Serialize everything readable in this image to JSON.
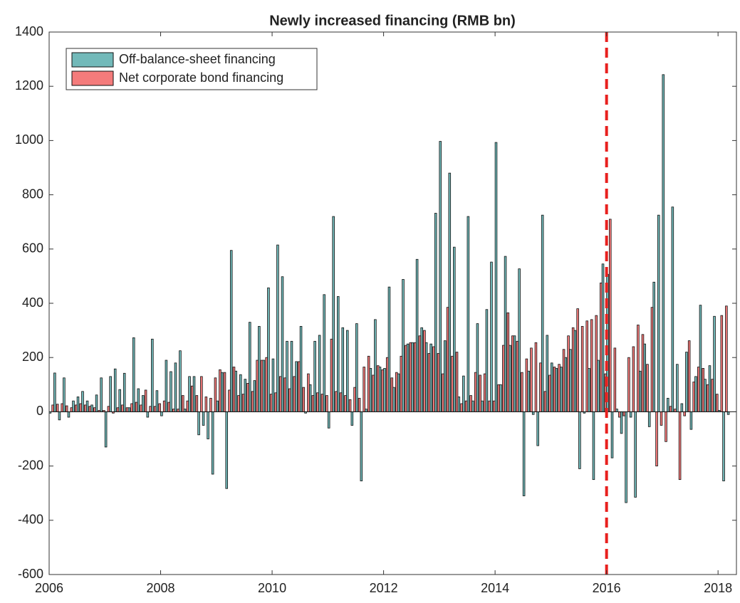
{
  "chart_data": {
    "type": "bar",
    "title": "Newly increased financing (RMB bn)",
    "x": [
      2006,
      2006.083,
      2006.167,
      2006.25,
      2006.333,
      2006.417,
      2006.5,
      2006.583,
      2006.667,
      2006.75,
      2006.833,
      2006.917,
      2007,
      2007.083,
      2007.167,
      2007.25,
      2007.333,
      2007.417,
      2007.5,
      2007.583,
      2007.667,
      2007.75,
      2007.833,
      2007.917,
      2008,
      2008.083,
      2008.167,
      2008.25,
      2008.333,
      2008.417,
      2008.5,
      2008.583,
      2008.667,
      2008.75,
      2008.833,
      2008.917,
      2009,
      2009.083,
      2009.167,
      2009.25,
      2009.333,
      2009.417,
      2009.5,
      2009.583,
      2009.667,
      2009.75,
      2009.833,
      2009.917,
      2010,
      2010.083,
      2010.167,
      2010.25,
      2010.333,
      2010.417,
      2010.5,
      2010.583,
      2010.667,
      2010.75,
      2010.833,
      2010.917,
      2011,
      2011.083,
      2011.167,
      2011.25,
      2011.333,
      2011.417,
      2011.5,
      2011.583,
      2011.667,
      2011.75,
      2011.833,
      2011.917,
      2012,
      2012.083,
      2012.167,
      2012.25,
      2012.333,
      2012.417,
      2012.5,
      2012.583,
      2012.667,
      2012.75,
      2012.833,
      2012.917,
      2013,
      2013.083,
      2013.167,
      2013.25,
      2013.333,
      2013.417,
      2013.5,
      2013.583,
      2013.667,
      2013.75,
      2013.833,
      2013.917,
      2014,
      2014.083,
      2014.167,
      2014.25,
      2014.333,
      2014.417,
      2014.5,
      2014.583,
      2014.667,
      2014.75,
      2014.833,
      2014.917,
      2015,
      2015.083,
      2015.167,
      2015.25,
      2015.333,
      2015.417,
      2015.5,
      2015.583,
      2015.667,
      2015.75,
      2015.833,
      2015.917,
      2016,
      2016.083,
      2016.167,
      2016.25,
      2016.333,
      2016.417,
      2016.5,
      2016.583,
      2016.667,
      2016.75,
      2016.833,
      2016.917,
      2017,
      2017.083,
      2017.167,
      2017.25,
      2017.333,
      2017.417,
      2017.5,
      2017.583,
      2017.667,
      2017.75,
      2017.833,
      2017.917,
      2018,
      2018.083,
      2018.167
    ],
    "series": [
      {
        "name": "Off-balance-sheet financing",
        "color": "#72b9b9",
        "values": [
          -5,
          143,
          -30,
          125,
          -20,
          40,
          55,
          75,
          40,
          25,
          62,
          125,
          -130,
          130,
          158,
          82,
          142,
          15,
          273,
          85,
          60,
          -20,
          268,
          78,
          -15,
          190,
          148,
          180,
          225,
          10,
          130,
          130,
          -85,
          -50,
          -100,
          -230,
          40,
          145,
          -283,
          595,
          150,
          137,
          120,
          330,
          115,
          315,
          190,
          457,
          195,
          615,
          498,
          260,
          260,
          185,
          315,
          -5,
          100,
          260,
          282,
          432,
          -60,
          720,
          425,
          310,
          300,
          -50,
          325,
          -255,
          10,
          160,
          340,
          165,
          160,
          460,
          90,
          140,
          488,
          250,
          255,
          562,
          310,
          255,
          250,
          732,
          997,
          262,
          880,
          607,
          55,
          132,
          720,
          40,
          325,
          40,
          377,
          552,
          993,
          100,
          573,
          245,
          280,
          527,
          -310,
          150,
          -10,
          -125,
          725,
          282,
          180,
          160,
          165,
          200,
          230,
          300,
          -210,
          -5,
          160,
          -250,
          190,
          545,
          507,
          -170,
          10,
          -80,
          -335,
          -20,
          -315,
          150,
          250,
          -55,
          478,
          725,
          1243,
          50,
          755,
          175,
          30,
          220,
          -65,
          130,
          393,
          120,
          170,
          352,
          5,
          -255,
          -10
        ]
      },
      {
        "name": "Net corporate bond financing",
        "color": "#f47b7b",
        "values": [
          30,
          25,
          28,
          30,
          22,
          15,
          25,
          30,
          25,
          20,
          15,
          5,
          5,
          20,
          -5,
          15,
          25,
          15,
          30,
          35,
          25,
          80,
          20,
          20,
          30,
          40,
          35,
          10,
          10,
          60,
          40,
          95,
          60,
          130,
          55,
          50,
          125,
          155,
          145,
          80,
          165,
          60,
          65,
          105,
          75,
          190,
          190,
          200,
          65,
          70,
          130,
          125,
          85,
          130,
          185,
          90,
          140,
          60,
          70,
          65,
          60,
          268,
          75,
          70,
          60,
          45,
          90,
          50,
          165,
          205,
          135,
          170,
          155,
          200,
          125,
          145,
          205,
          245,
          255,
          255,
          280,
          300,
          215,
          240,
          215,
          140,
          385,
          205,
          220,
          30,
          40,
          60,
          145,
          135,
          140,
          40,
          40,
          100,
          245,
          365,
          280,
          260,
          145,
          195,
          235,
          255,
          180,
          75,
          135,
          165,
          175,
          230,
          280,
          310,
          380,
          315,
          335,
          340,
          355,
          475,
          140,
          710,
          235,
          -20,
          -15,
          200,
          240,
          320,
          285,
          175,
          385,
          -200,
          -50,
          -110,
          20,
          10,
          -250,
          -15,
          262,
          110,
          165,
          160,
          100,
          120,
          65,
          355,
          390
        ]
      }
    ],
    "xlim": [
      2006,
      2018.33
    ],
    "xticks": [
      2006,
      2008,
      2010,
      2012,
      2014,
      2016,
      2018
    ],
    "ylim": [
      -600,
      1400
    ],
    "yticks": [
      -600,
      -400,
      -200,
      0,
      200,
      400,
      600,
      800,
      1000,
      1200,
      1400
    ],
    "vline": {
      "x": 2016,
      "color": "#e8201e"
    },
    "legend": "upper left"
  }
}
